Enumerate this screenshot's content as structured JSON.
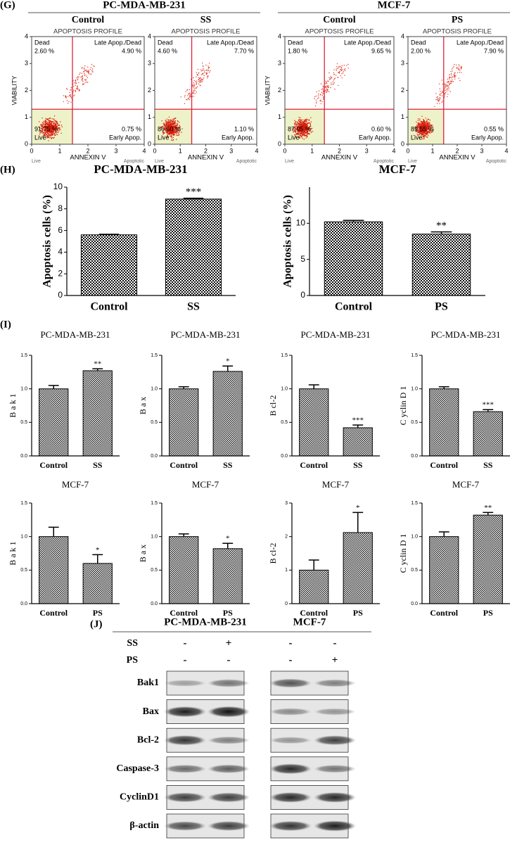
{
  "panel_g": {
    "label": "(G)",
    "ticks": [
      0,
      1,
      2,
      3,
      4
    ],
    "gate": [
      1.45,
      1.3
    ],
    "header": "APOPTOSIS PROFILE",
    "x_label": "ANNEXIN V",
    "y_label": "VIABILITY",
    "x_left": "Live",
    "x_right": "Apoptotic",
    "quadrants": [
      "Dead",
      "Late Apop./Dead",
      "Early Apop.",
      "Live"
    ],
    "groups": [
      {
        "title": "PC-MDA-MB-231",
        "plots": [
          {
            "title": "Control",
            "percents": [
              "2.60 %",
              "4.90 %",
              "0.75 %",
              "91.75 %"
            ]
          },
          {
            "title": "SS",
            "percents": [
              "4.60 %",
              "7.70 %",
              "1.10 %",
              "86.60 %"
            ]
          }
        ]
      },
      {
        "title": "MCF-7",
        "plots": [
          {
            "title": "Control",
            "percents": [
              "1.80 %",
              "9.65 %",
              "0.60 %",
              "87.95 %"
            ]
          },
          {
            "title": "PS",
            "percents": [
              "2.00 %",
              "7.90 %",
              "0.55 %",
              "89.55 %"
            ]
          }
        ]
      }
    ]
  },
  "panel_h_label": "(H)",
  "panel_i_label": "(I)",
  "chart_data": [
    {
      "type": "bar",
      "title": "PC-MDA-MB-231",
      "y_label": "Apoptosis cells (%)",
      "categories": [
        "Control",
        "SS"
      ],
      "values": [
        5.6,
        8.9
      ],
      "errors": [
        0.05,
        0.08
      ],
      "annotations": [
        null,
        "***"
      ],
      "ylim": [
        0,
        10
      ],
      "yticks": [
        0,
        2,
        4,
        6,
        8,
        10
      ]
    },
    {
      "type": "bar",
      "title": "MCF-7",
      "y_label": "Apoptosis cells (%)",
      "categories": [
        "Control",
        "PS"
      ],
      "values": [
        10.2,
        8.5
      ],
      "errors": [
        0.2,
        0.3
      ],
      "annotations": [
        null,
        "**"
      ],
      "ylim": [
        0,
        15
      ],
      "yticks": [
        0,
        5,
        10
      ]
    },
    {
      "type": "bar",
      "title": "PC-MDA-MB-231",
      "y_label": "B a k 1",
      "categories": [
        "Control",
        "SS"
      ],
      "values": [
        1.0,
        1.27
      ],
      "errors": [
        0.05,
        0.03
      ],
      "annotations": [
        null,
        "**"
      ],
      "ylim": [
        0,
        1.5
      ],
      "yticks": [
        {
          "value": 0,
          "label": "0.0"
        },
        {
          "value": 0.5,
          "label": "0.5"
        },
        {
          "value": 1,
          "label": "1.0"
        },
        {
          "value": 1.5,
          "label": "1.5"
        }
      ]
    },
    {
      "type": "bar",
      "title": "PC-MDA-MB-231",
      "y_label": "B a x",
      "categories": [
        "Control",
        "SS"
      ],
      "values": [
        1.0,
        1.26
      ],
      "errors": [
        0.03,
        0.08
      ],
      "annotations": [
        null,
        "*"
      ],
      "ylim": [
        0,
        1.5
      ],
      "yticks": [
        {
          "value": 0,
          "label": "0.0"
        },
        {
          "value": 0.5,
          "label": "0.5"
        },
        {
          "value": 1,
          "label": "1.0"
        },
        {
          "value": 1.5,
          "label": "1.5"
        }
      ]
    },
    {
      "type": "bar",
      "title": "PC-MDA-MB-231",
      "y_label": "B cl-2",
      "categories": [
        "Control",
        "SS"
      ],
      "values": [
        1.0,
        0.42
      ],
      "errors": [
        0.06,
        0.04
      ],
      "annotations": [
        null,
        "***"
      ],
      "ylim": [
        0,
        1.5
      ],
      "yticks": [
        {
          "value": 0,
          "label": "0.0"
        },
        {
          "value": 0.5,
          "label": "0.5"
        },
        {
          "value": 1,
          "label": "1.0"
        },
        {
          "value": 1.5,
          "label": "1.5"
        }
      ]
    },
    {
      "type": "bar",
      "title": "PC-MDA-MB-231",
      "y_label": "C yclin D 1",
      "categories": [
        "Control",
        "SS"
      ],
      "values": [
        1.0,
        0.66
      ],
      "errors": [
        0.03,
        0.03
      ],
      "annotations": [
        null,
        "***"
      ],
      "ylim": [
        0,
        1.5
      ],
      "yticks": [
        {
          "value": 0,
          "label": "0.0"
        },
        {
          "value": 0.5,
          "label": "0.5"
        },
        {
          "value": 1,
          "label": "1.0"
        },
        {
          "value": 1.5,
          "label": "1.5"
        }
      ]
    },
    {
      "type": "bar",
      "title": "MCF-7",
      "y_label": "B a k 1",
      "categories": [
        "Control",
        "PS"
      ],
      "values": [
        1.0,
        0.6
      ],
      "errors": [
        0.14,
        0.13
      ],
      "annotations": [
        null,
        "*"
      ],
      "ylim": [
        0,
        1.5
      ],
      "yticks": [
        {
          "value": 0,
          "label": "0.0"
        },
        {
          "value": 0.5,
          "label": "0.5"
        },
        {
          "value": 1,
          "label": "1.0"
        },
        {
          "value": 1.5,
          "label": "1.5"
        }
      ]
    },
    {
      "type": "bar",
      "title": "MCF-7",
      "y_label": "B a x",
      "categories": [
        "Control",
        "PS"
      ],
      "values": [
        1.0,
        0.82
      ],
      "errors": [
        0.04,
        0.08
      ],
      "annotations": [
        null,
        "*"
      ],
      "ylim": [
        0,
        1.5
      ],
      "yticks": [
        {
          "value": 0,
          "label": "0.0"
        },
        {
          "value": 0.5,
          "label": "0.5"
        },
        {
          "value": 1,
          "label": "1.0"
        },
        {
          "value": 1.5,
          "label": "1.5"
        }
      ]
    },
    {
      "type": "bar",
      "title": "MCF-7",
      "y_label": "B cl-2",
      "categories": [
        "Control",
        "PS"
      ],
      "values": [
        1.0,
        2.12
      ],
      "errors": [
        0.3,
        0.6
      ],
      "annotations": [
        null,
        "*"
      ],
      "ylim": [
        0,
        3
      ],
      "yticks": [
        0,
        1,
        2,
        3
      ]
    },
    {
      "type": "bar",
      "title": "MCF-7",
      "y_label": "C yclin D 1",
      "categories": [
        "Control",
        "PS"
      ],
      "values": [
        1.0,
        1.32
      ],
      "errors": [
        0.07,
        0.04
      ],
      "annotations": [
        null,
        "**"
      ],
      "ylim": [
        0,
        1.5
      ],
      "yticks": [
        {
          "value": 0,
          "label": "0.0"
        },
        {
          "value": 0.5,
          "label": "0.5"
        },
        {
          "value": 1,
          "label": "1.0"
        },
        {
          "value": 1.5,
          "label": "1.5"
        }
      ]
    }
  ],
  "panel_j": {
    "label": "(J)",
    "cell_lines": [
      "PC-MDA-MB-231",
      "MCF-7"
    ],
    "treatments": [
      {
        "name": "SS",
        "signs": [
          "-",
          "+",
          "-",
          "-"
        ]
      },
      {
        "name": "PS",
        "signs": [
          "-",
          "-",
          "-",
          "+"
        ]
      }
    ],
    "proteins": [
      "Bak1",
      "Bax",
      "Bcl-2",
      "Caspase-3",
      "CyclinD1",
      "β-actin"
    ]
  }
}
